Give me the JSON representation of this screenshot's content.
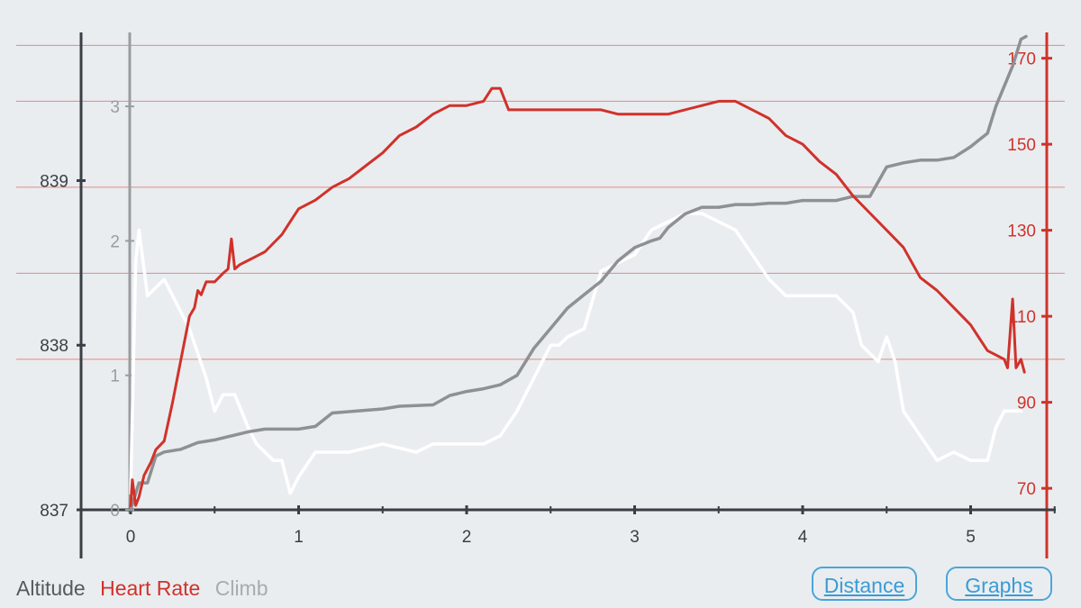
{
  "colors": {
    "background": "#eaedf0",
    "altitude": "#ffffff",
    "heart_rate": "#d0322a",
    "climb": "#8e9194",
    "gridline": "#e08a85",
    "left_axis": "#3a3f45",
    "climb_axis": "#9a9da0",
    "button": "#3a9bd5"
  },
  "legend": {
    "altitude": "Altitude",
    "heart_rate": "Heart Rate",
    "climb": "Climb"
  },
  "buttons": {
    "distance": "Distance",
    "graphs": "Graphs"
  },
  "chart_data": {
    "type": "line",
    "title": "",
    "xlabel": "",
    "grid": "horizontal",
    "legend_position": "bottom-left",
    "xlim": [
      0,
      5.4
    ],
    "x_ticks": [
      "0",
      "1",
      "2",
      "3",
      "4",
      "5"
    ],
    "axes": {
      "altitude": {
        "ylim": [
          837,
          839.9
        ],
        "ticks": [
          "837",
          "838",
          "839"
        ]
      },
      "climb": {
        "ylim": [
          0,
          3.55
        ],
        "ticks": [
          "0",
          "1",
          "2",
          "3"
        ]
      },
      "heart_rate": {
        "ylim": [
          65,
          176
        ],
        "ticks": [
          "70",
          "90",
          "110",
          "130",
          "150",
          "170"
        ]
      }
    },
    "series": [
      {
        "name": "Altitude",
        "axis": "altitude",
        "x": [
          0,
          0.03,
          0.05,
          0.1,
          0.2,
          0.3,
          0.35,
          0.45,
          0.5,
          0.55,
          0.62,
          0.7,
          0.75,
          0.85,
          0.9,
          0.95,
          1.0,
          1.1,
          1.2,
          1.3,
          1.5,
          1.7,
          1.8,
          1.9,
          2.0,
          2.1,
          2.2,
          2.3,
          2.4,
          2.5,
          2.55,
          2.6,
          2.7,
          2.8,
          2.9,
          3.0,
          3.1,
          3.2,
          3.3,
          3.4,
          3.5,
          3.6,
          3.7,
          3.8,
          3.9,
          4.0,
          4.1,
          4.2,
          4.3,
          4.35,
          4.4,
          4.45,
          4.5,
          4.55,
          4.6,
          4.7,
          4.8,
          4.9,
          5.0,
          5.05,
          5.1,
          5.15,
          5.2,
          5.25,
          5.3
        ],
        "values": [
          837.1,
          838.5,
          838.7,
          838.3,
          838.4,
          838.2,
          838.1,
          837.8,
          837.6,
          837.7,
          837.7,
          837.5,
          837.4,
          837.3,
          837.3,
          837.1,
          837.2,
          837.35,
          837.35,
          837.35,
          837.4,
          837.35,
          837.4,
          837.4,
          837.4,
          837.4,
          837.45,
          837.6,
          837.8,
          838.0,
          838.0,
          838.05,
          838.1,
          838.45,
          838.5,
          838.55,
          838.7,
          838.75,
          838.8,
          838.8,
          838.75,
          838.7,
          838.55,
          838.4,
          838.3,
          838.3,
          838.3,
          838.3,
          838.2,
          838.0,
          837.95,
          837.9,
          838.05,
          837.9,
          837.6,
          837.45,
          837.3,
          837.35,
          837.3,
          837.3,
          837.3,
          837.5,
          837.6,
          837.6,
          837.6
        ]
      },
      {
        "name": "Heart Rate",
        "axis": "heart_rate",
        "x": [
          0,
          0.01,
          0.03,
          0.05,
          0.08,
          0.12,
          0.15,
          0.2,
          0.25,
          0.3,
          0.35,
          0.38,
          0.4,
          0.42,
          0.45,
          0.5,
          0.55,
          0.58,
          0.6,
          0.62,
          0.65,
          0.7,
          0.75,
          0.8,
          0.85,
          0.9,
          0.95,
          1.0,
          1.1,
          1.2,
          1.3,
          1.4,
          1.5,
          1.6,
          1.7,
          1.8,
          1.9,
          2.0,
          2.1,
          2.15,
          2.2,
          2.25,
          2.3,
          2.4,
          2.5,
          2.6,
          2.7,
          2.8,
          2.9,
          3.0,
          3.1,
          3.2,
          3.3,
          3.4,
          3.5,
          3.6,
          3.7,
          3.8,
          3.9,
          4.0,
          4.1,
          4.2,
          4.3,
          4.4,
          4.5,
          4.6,
          4.7,
          4.8,
          4.9,
          5.0,
          5.05,
          5.1,
          5.15,
          5.2,
          5.22,
          5.25,
          5.27,
          5.3,
          5.32
        ],
        "values": [
          66,
          72,
          66,
          68,
          73,
          76,
          79,
          81,
          90,
          100,
          110,
          112,
          116,
          115,
          118,
          118,
          120,
          121,
          128,
          121,
          122,
          123,
          124,
          125,
          127,
          129,
          132,
          135,
          137,
          140,
          142,
          145,
          148,
          152,
          154,
          157,
          159,
          159,
          160,
          163,
          163,
          158,
          158,
          158,
          158,
          158,
          158,
          158,
          157,
          157,
          157,
          157,
          158,
          159,
          160,
          160,
          158,
          156,
          152,
          150,
          146,
          143,
          138,
          134,
          130,
          126,
          119,
          116,
          112,
          108,
          105,
          102,
          101,
          100,
          98,
          114,
          98,
          100,
          97
        ]
      },
      {
        "name": "Climb",
        "axis": "climb",
        "x": [
          0,
          0.05,
          0.1,
          0.15,
          0.2,
          0.3,
          0.4,
          0.5,
          0.6,
          0.7,
          0.8,
          0.9,
          1.0,
          1.1,
          1.2,
          1.3,
          1.5,
          1.6,
          1.8,
          1.9,
          2.0,
          2.1,
          2.2,
          2.3,
          2.4,
          2.5,
          2.6,
          2.7,
          2.8,
          2.9,
          3.0,
          3.1,
          3.15,
          3.2,
          3.3,
          3.4,
          3.5,
          3.6,
          3.7,
          3.8,
          3.9,
          4.0,
          4.1,
          4.2,
          4.3,
          4.4,
          4.5,
          4.6,
          4.7,
          4.8,
          4.9,
          5.0,
          5.05,
          5.1,
          5.15,
          5.2,
          5.25,
          5.3,
          5.33
        ],
        "values": [
          0,
          0.2,
          0.2,
          0.4,
          0.43,
          0.45,
          0.5,
          0.52,
          0.55,
          0.58,
          0.6,
          0.6,
          0.6,
          0.62,
          0.72,
          0.73,
          0.75,
          0.77,
          0.78,
          0.85,
          0.88,
          0.9,
          0.93,
          1.0,
          1.2,
          1.35,
          1.5,
          1.6,
          1.7,
          1.85,
          1.95,
          2.0,
          2.02,
          2.1,
          2.2,
          2.25,
          2.25,
          2.27,
          2.27,
          2.28,
          2.28,
          2.3,
          2.3,
          2.3,
          2.33,
          2.33,
          2.55,
          2.58,
          2.6,
          2.6,
          2.62,
          2.7,
          2.75,
          2.8,
          3.0,
          3.15,
          3.3,
          3.5,
          3.52
        ]
      }
    ]
  }
}
